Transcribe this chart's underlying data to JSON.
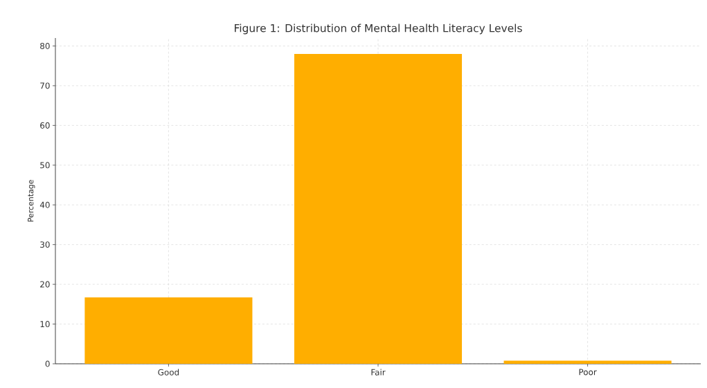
{
  "chart_data": {
    "type": "bar",
    "title": "Figure 1: Distribution of Mental Health Literacy Levels",
    "ylabel": "Percentage",
    "categories": [
      "Good",
      "Fair",
      "Poor"
    ],
    "values": [
      16.7,
      78,
      0.8
    ],
    "color": "#ffae00",
    "ylim": [
      0,
      82
    ],
    "yticks": [
      0,
      10,
      20,
      30,
      40,
      50,
      60,
      70,
      80
    ],
    "grid": true
  }
}
